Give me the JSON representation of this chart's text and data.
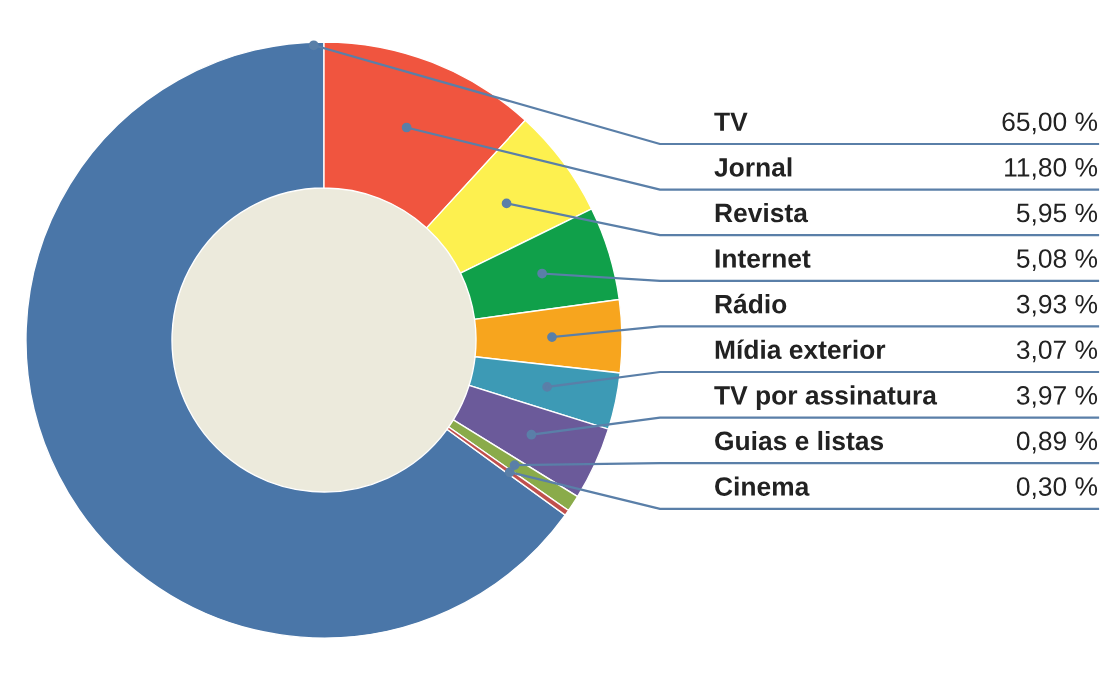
{
  "chart_data": {
    "type": "donut",
    "categories": [
      "TV",
      "Jornal",
      "Revista",
      "Internet",
      "Rádio",
      "Mídia exterior",
      "TV por assinatura",
      "Guias e listas",
      "Cinema"
    ],
    "values": [
      65.0,
      11.8,
      5.95,
      5.08,
      3.93,
      3.07,
      3.97,
      0.89,
      0.3
    ],
    "value_labels": [
      "65,00 %",
      "11,80 %",
      "5,95 %",
      "5,08 %",
      "3,93 %",
      "3,07 %",
      "3,97 %",
      "0,89 %",
      "0,30 %"
    ],
    "colors": [
      "#4a76a8",
      "#f0553f",
      "#fdf04f",
      "#10a04a",
      "#f7a51e",
      "#3d9ab5",
      "#6b5a9a",
      "#8aab4a",
      "#c0504d"
    ]
  }
}
